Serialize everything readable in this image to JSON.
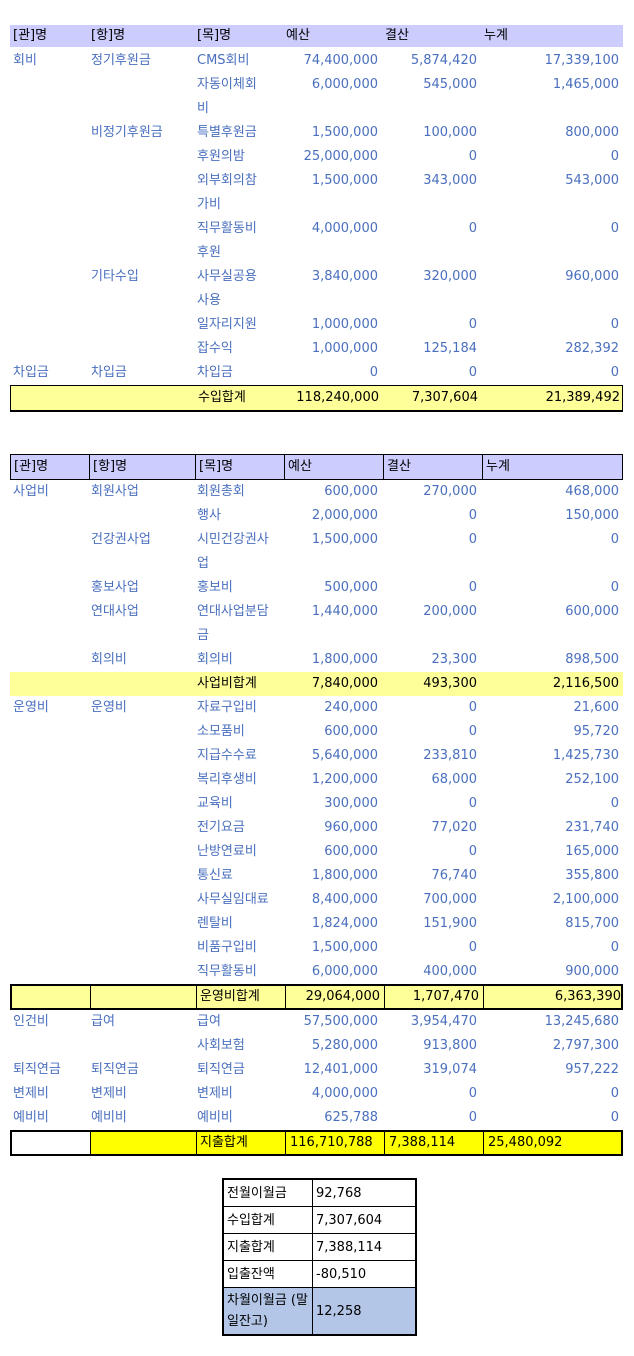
{
  "colors": {
    "header_bg": "#CCCCFF",
    "subtotal_bg": "#FFFF99",
    "grandtotal_bg": "#FFFF00",
    "summary_highlight_bg": "#B4C6E7",
    "data_text": "#4A6FBE",
    "total_text": "#000000"
  },
  "income_table": {
    "headers": [
      "[관]명",
      "[항]명",
      "[목]명",
      "예산",
      "결산",
      "누계"
    ],
    "rows": [
      {
        "gwan": "회비",
        "hang": "정기후원금",
        "mok": "CMS회비",
        "budget": "74,400,000",
        "settlement": "5,874,420",
        "cumulative": "17,339,100"
      },
      {
        "gwan": "",
        "hang": "",
        "mok": "자동이체회비",
        "budget": "6,000,000",
        "settlement": "545,000",
        "cumulative": "1,465,000"
      },
      {
        "gwan": "",
        "hang": "비정기후원금",
        "mok": "특별후원금",
        "budget": "1,500,000",
        "settlement": "100,000",
        "cumulative": "800,000"
      },
      {
        "gwan": "",
        "hang": "",
        "mok": "후원의밤",
        "budget": "25,000,000",
        "settlement": "0",
        "cumulative": "0"
      },
      {
        "gwan": "",
        "hang": "",
        "mok": "외부회의참가비",
        "budget": "1,500,000",
        "settlement": "343,000",
        "cumulative": "543,000"
      },
      {
        "gwan": "",
        "hang": "",
        "mok": "직무활동비후원",
        "budget": "4,000,000",
        "settlement": "0",
        "cumulative": "0"
      },
      {
        "gwan": "",
        "hang": "기타수입",
        "mok": "사무실공용사용",
        "budget": "3,840,000",
        "settlement": "320,000",
        "cumulative": "960,000"
      },
      {
        "gwan": "",
        "hang": "",
        "mok": "일자리지원",
        "budget": "1,000,000",
        "settlement": "0",
        "cumulative": "0"
      },
      {
        "gwan": "",
        "hang": "",
        "mok": "잡수익",
        "budget": "1,000,000",
        "settlement": "125,184",
        "cumulative": "282,392"
      },
      {
        "gwan": "차입금",
        "hang": "차입금",
        "mok": "차입금",
        "budget": "0",
        "settlement": "0",
        "cumulative": "0"
      },
      {
        "style": "total",
        "gwan": "",
        "hang": "",
        "mok": "수입합계",
        "budget": "118,240,000",
        "settlement": "7,307,604",
        "cumulative": "21,389,492"
      }
    ]
  },
  "expense_table": {
    "headers": [
      "[관]명",
      "[항]명",
      "[목]명",
      "예산",
      "결산",
      "누계"
    ],
    "rows": [
      {
        "gwan": "사업비",
        "hang": "회원사업",
        "mok": "회원총회",
        "budget": "600,000",
        "settlement": "270,000",
        "cumulative": "468,000"
      },
      {
        "gwan": "",
        "hang": "",
        "mok": "행사",
        "budget": "2,000,000",
        "settlement": "0",
        "cumulative": "150,000"
      },
      {
        "gwan": "",
        "hang": "건강권사업",
        "mok": "시민건강권사업",
        "budget": "1,500,000",
        "settlement": "0",
        "cumulative": "0"
      },
      {
        "gwan": "",
        "hang": "홍보사업",
        "mok": "홍보비",
        "budget": "500,000",
        "settlement": "0",
        "cumulative": "0"
      },
      {
        "gwan": "",
        "hang": "연대사업",
        "mok": "연대사업분담금",
        "budget": "1,440,000",
        "settlement": "200,000",
        "cumulative": "600,000"
      },
      {
        "gwan": "",
        "hang": "회의비",
        "mok": "회의비",
        "budget": "1,800,000",
        "settlement": "23,300",
        "cumulative": "898,500"
      },
      {
        "style": "subtotal",
        "gwan": "",
        "hang": "",
        "mok": "사업비합계",
        "budget": "7,840,000",
        "settlement": "493,300",
        "cumulative": "2,116,500"
      },
      {
        "gwan": "운영비",
        "hang": "운영비",
        "mok": "자료구입비",
        "budget": "240,000",
        "settlement": "0",
        "cumulative": "21,600"
      },
      {
        "gwan": "",
        "hang": "",
        "mok": "소모품비",
        "budget": "600,000",
        "settlement": "0",
        "cumulative": "95,720"
      },
      {
        "gwan": "",
        "hang": "",
        "mok": "지급수수료",
        "budget": "5,640,000",
        "settlement": "233,810",
        "cumulative": "1,425,730"
      },
      {
        "gwan": "",
        "hang": "",
        "mok": "복리후생비",
        "budget": "1,200,000",
        "settlement": "68,000",
        "cumulative": "252,100"
      },
      {
        "gwan": "",
        "hang": "",
        "mok": "교육비",
        "budget": "300,000",
        "settlement": "0",
        "cumulative": "0"
      },
      {
        "gwan": "",
        "hang": "",
        "mok": "전기요금",
        "budget": "960,000",
        "settlement": "77,020",
        "cumulative": "231,740"
      },
      {
        "gwan": "",
        "hang": "",
        "mok": "난방연료비",
        "budget": "600,000",
        "settlement": "0",
        "cumulative": "165,000"
      },
      {
        "gwan": "",
        "hang": "",
        "mok": "통신료",
        "budget": "1,800,000",
        "settlement": "76,740",
        "cumulative": "355,800"
      },
      {
        "gwan": "",
        "hang": "",
        "mok": "사무실임대료",
        "budget": "8,400,000",
        "settlement": "700,000",
        "cumulative": "2,100,000"
      },
      {
        "gwan": "",
        "hang": "",
        "mok": "렌탈비",
        "budget": "1,824,000",
        "settlement": "151,900",
        "cumulative": "815,700"
      },
      {
        "gwan": "",
        "hang": "",
        "mok": "비품구입비",
        "budget": "1,500,000",
        "settlement": "0",
        "cumulative": "0"
      },
      {
        "gwan": "",
        "hang": "",
        "mok": "직무활동비",
        "budget": "6,000,000",
        "settlement": "400,000",
        "cumulative": "900,000"
      },
      {
        "style": "subtotal-bordered",
        "gwan": "",
        "hang": "",
        "mok": "운영비합계",
        "budget": "29,064,000",
        "settlement": "1,707,470",
        "cumulative": "6,363,390"
      },
      {
        "gwan": "인건비",
        "hang": "급여",
        "mok": "급여",
        "budget": "57,500,000",
        "settlement": "3,954,470",
        "cumulative": "13,245,680"
      },
      {
        "gwan": "",
        "hang": "",
        "mok": "사회보험",
        "budget": "5,280,000",
        "settlement": "913,800",
        "cumulative": "2,797,300"
      },
      {
        "gwan": "퇴직연금",
        "hang": "퇴직연금",
        "mok": "퇴직연금",
        "budget": "12,401,000",
        "settlement": "319,074",
        "cumulative": "957,222"
      },
      {
        "gwan": "변제비",
        "hang": "변제비",
        "mok": "변제비",
        "budget": "4,000,000",
        "settlement": "0",
        "cumulative": "0"
      },
      {
        "gwan": "예비비",
        "hang": "예비비",
        "mok": "예비비",
        "budget": "625,788",
        "settlement": "0",
        "cumulative": "0"
      },
      {
        "style": "grandtotal",
        "gwan": "",
        "hang": "",
        "mok": "지출합계",
        "budget": "116,710,788",
        "settlement": "7,388,114",
        "cumulative": "25,480,092"
      }
    ]
  },
  "summary_table": {
    "rows": [
      {
        "label": "전월이월금",
        "value": "92,768"
      },
      {
        "label": "수입합계",
        "value": "7,307,604"
      },
      {
        "label": "지출합계",
        "value": "7,388,114"
      },
      {
        "label": "입출잔액",
        "value": "-80,510"
      },
      {
        "label": "차월이월금 (말일잔고)",
        "value": "12,258",
        "highlight": true
      }
    ]
  }
}
